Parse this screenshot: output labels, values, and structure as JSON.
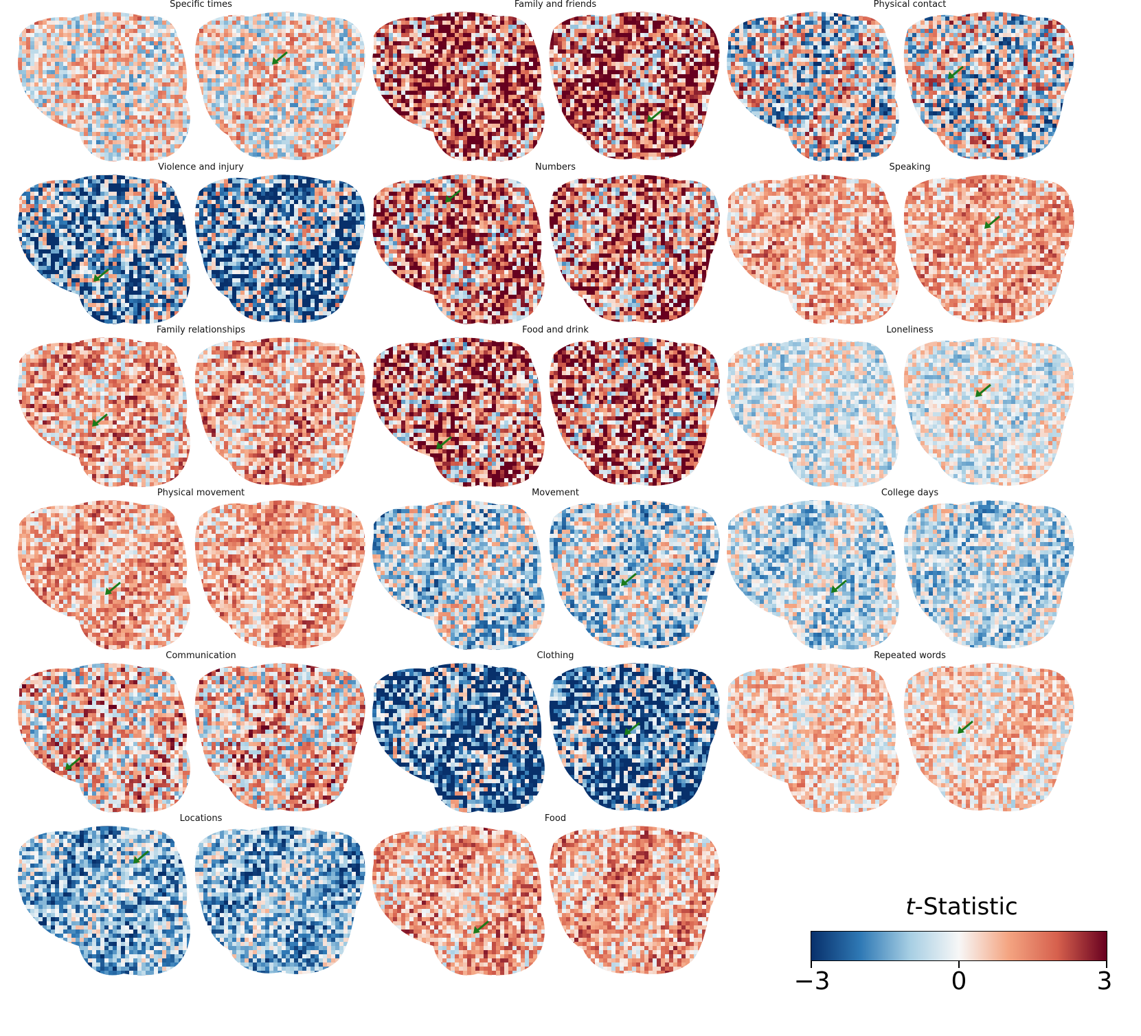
{
  "panels": [
    {
      "title": "Specific times",
      "tone": 0.05,
      "intensity": 0.55,
      "arrow_hemisphere": "right"
    },
    {
      "title": "Family and friends",
      "tone": 0.55,
      "intensity": 0.85,
      "arrow_hemisphere": "right"
    },
    {
      "title": "Physical contact",
      "tone": -0.05,
      "intensity": 0.85,
      "arrow_hemisphere": "right"
    },
    {
      "title": "Violence and injury",
      "tone": -0.45,
      "intensity": 0.9,
      "arrow_hemisphere": "left"
    },
    {
      "title": "Numbers",
      "tone": 0.45,
      "intensity": 0.85,
      "arrow_hemisphere": "left"
    },
    {
      "title": "Speaking",
      "tone": 0.3,
      "intensity": 0.45,
      "arrow_hemisphere": "right"
    },
    {
      "title": "Family relationships",
      "tone": 0.3,
      "intensity": 0.55,
      "arrow_hemisphere": "left"
    },
    {
      "title": "Food and drink",
      "tone": 0.5,
      "intensity": 0.9,
      "arrow_hemisphere": "left"
    },
    {
      "title": "Loneliness",
      "tone": -0.05,
      "intensity": 0.4,
      "arrow_hemisphere": "right"
    },
    {
      "title": "Physical movement",
      "tone": 0.3,
      "intensity": 0.45,
      "arrow_hemisphere": "left"
    },
    {
      "title": "Movement",
      "tone": -0.2,
      "intensity": 0.6,
      "arrow_hemisphere": "right"
    },
    {
      "title": "College days",
      "tone": -0.2,
      "intensity": 0.45,
      "arrow_hemisphere": "left"
    },
    {
      "title": "Communication",
      "tone": 0.2,
      "intensity": 0.7,
      "arrow_hemisphere": "left"
    },
    {
      "title": "Clothing",
      "tone": -0.65,
      "intensity": 0.95,
      "arrow_hemisphere": "right"
    },
    {
      "title": "Repeated words",
      "tone": 0.15,
      "intensity": 0.4,
      "arrow_hemisphere": "right"
    },
    {
      "title": "Locations",
      "tone": -0.4,
      "intensity": 0.55,
      "arrow_hemisphere": "left"
    },
    {
      "title": "Food",
      "tone": 0.3,
      "intensity": 0.5,
      "arrow_hemisphere": "left"
    }
  ],
  "colorbar": {
    "title_italic": "t",
    "title_rest": "-Statistic",
    "min_label": "−3",
    "mid_label": "0",
    "max_label": "3",
    "min": -3,
    "max": 3,
    "colors": {
      "neg_dark": "#08306b",
      "neg_mid": "#2f79b5",
      "neg_light": "#a6cee3",
      "neutral": "#f7f7f7",
      "pos_light": "#f4a582",
      "pos_mid": "#d6604d",
      "pos_dark": "#67001f"
    }
  },
  "colors": {
    "arrow": "#1a7a1a",
    "text": "#111111"
  }
}
